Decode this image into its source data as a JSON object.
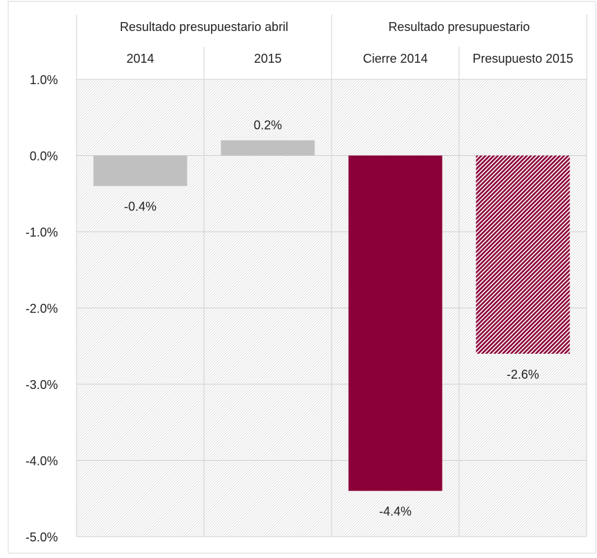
{
  "chart_data": {
    "type": "bar",
    "group_headers": [
      {
        "label": "Resultado presupuestario abril",
        "categories": [
          "2014",
          "2015"
        ]
      },
      {
        "label": "Resultado presupuestario",
        "categories": [
          "Cierre 2014",
          "Presupuesto 2015"
        ]
      }
    ],
    "categories": [
      "2014",
      "2015",
      "Cierre 2014",
      "Presupuesto 2015"
    ],
    "values": [
      -0.4,
      0.2,
      -4.4,
      -2.6
    ],
    "data_labels": [
      "-0.4%",
      "0.2%",
      "-4.4%",
      "-2.6%"
    ],
    "bar_colors": [
      "#c0c0c0",
      "#c0c0c0",
      "#8b0038",
      "#8b0038"
    ],
    "bar_styles": [
      "solid",
      "solid",
      "solid",
      "hatched"
    ],
    "ylim": [
      -5.0,
      1.0
    ],
    "yticks": [
      1.0,
      0.0,
      -1.0,
      -2.0,
      -3.0,
      -4.0,
      -5.0
    ],
    "ytick_labels": [
      "1.0%",
      "0.0%",
      "-1.0%",
      "-2.0%",
      "-3.0%",
      "-4.0%",
      "-5.0%"
    ],
    "title": "",
    "xlabel": "",
    "ylabel": "",
    "grid": true,
    "plot_background": "hatched"
  }
}
